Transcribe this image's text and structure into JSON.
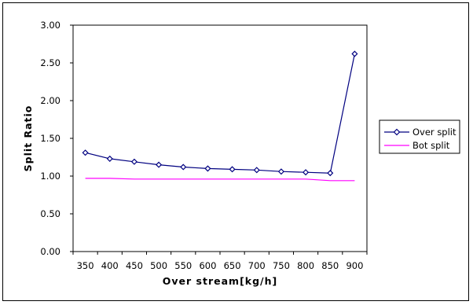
{
  "chart_data": {
    "type": "line",
    "x": [
      350,
      400,
      450,
      500,
      550,
      600,
      650,
      700,
      750,
      800,
      850,
      900
    ],
    "series": [
      {
        "name": "Over split",
        "values": [
          1.31,
          1.23,
          1.19,
          1.15,
          1.12,
          1.1,
          1.09,
          1.08,
          1.06,
          1.05,
          1.04,
          2.62
        ],
        "color": "#000080",
        "marker": "diamond"
      },
      {
        "name": "Bot split",
        "values": [
          0.97,
          0.97,
          0.96,
          0.96,
          0.96,
          0.96,
          0.96,
          0.96,
          0.96,
          0.96,
          0.94,
          0.94
        ],
        "color": "#ff00ff",
        "marker": "none"
      }
    ],
    "xlabel": "Over stream[kg/h]",
    "ylabel": "Split Ratio",
    "ylim": [
      0,
      3
    ],
    "yticks": [
      "0.00",
      "0.50",
      "1.00",
      "1.50",
      "2.00",
      "2.50",
      "3.00"
    ],
    "xticks": [
      "350",
      "400",
      "450",
      "500",
      "550",
      "600",
      "650",
      "700",
      "750",
      "800",
      "850",
      "900"
    ],
    "grid": false,
    "legend": "right"
  }
}
